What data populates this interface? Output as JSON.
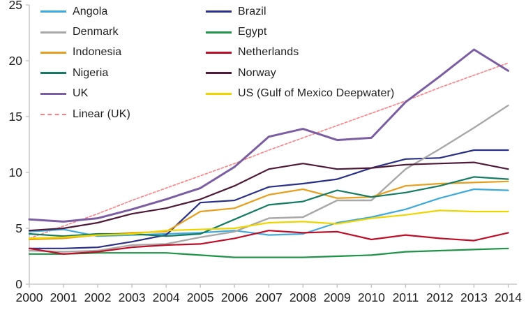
{
  "chart_data": {
    "type": "line",
    "title": "",
    "xlabel": "",
    "ylabel": "",
    "x": [
      2000,
      2001,
      2002,
      2003,
      2004,
      2005,
      2006,
      2007,
      2008,
      2009,
      2010,
      2011,
      2012,
      2013,
      2014
    ],
    "yticks": [
      0,
      5,
      10,
      15,
      20,
      25
    ],
    "ylim": [
      0,
      25
    ],
    "grid": false,
    "legend_position": "inside-top-left",
    "axis_color": "#bfbfbf",
    "text_color": "#1f1f1f",
    "series": [
      {
        "name": "Angola",
        "color": "#3fa9dc",
        "dashed": false,
        "width": 2.2,
        "values": [
          4.7,
          4.9,
          4.3,
          4.4,
          4.5,
          4.6,
          4.8,
          4.4,
          4.5,
          5.5,
          6.0,
          6.7,
          7.7,
          8.5,
          8.4
        ]
      },
      {
        "name": "Brazil",
        "color": "#2b3087",
        "dashed": false,
        "width": 2.2,
        "values": [
          3.2,
          3.2,
          3.3,
          3.8,
          4.4,
          7.3,
          7.5,
          8.7,
          9.0,
          9.4,
          10.4,
          11.2,
          11.3,
          12.0,
          12.0
        ]
      },
      {
        "name": "Denmark",
        "color": "#a8a8a8",
        "dashed": false,
        "width": 2.4,
        "values": [
          3.0,
          2.9,
          3.0,
          3.5,
          3.6,
          4.2,
          4.7,
          5.9,
          6.0,
          7.5,
          7.5,
          10.3,
          12.1,
          14.0,
          16.0
        ]
      },
      {
        "name": "Egypt",
        "color": "#1f9347",
        "dashed": false,
        "width": 2.2,
        "values": [
          2.7,
          2.7,
          2.8,
          2.8,
          2.8,
          2.6,
          2.4,
          2.4,
          2.4,
          2.5,
          2.6,
          2.9,
          3.0,
          3.1,
          3.2
        ]
      },
      {
        "name": "Indonesia",
        "color": "#e69f1e",
        "dashed": false,
        "width": 2.2,
        "values": [
          4.0,
          4.1,
          4.4,
          4.6,
          4.7,
          6.5,
          6.8,
          8.0,
          8.5,
          7.7,
          7.8,
          8.8,
          9.0,
          9.1,
          9.2
        ]
      },
      {
        "name": "Netherlands",
        "color": "#be0e27",
        "dashed": false,
        "width": 2.2,
        "values": [
          3.2,
          2.7,
          2.9,
          3.3,
          3.5,
          3.6,
          4.1,
          4.8,
          4.6,
          4.7,
          4.0,
          4.4,
          4.1,
          3.9,
          4.6
        ]
      },
      {
        "name": "Nigeria",
        "color": "#157b63",
        "dashed": false,
        "width": 2.2,
        "values": [
          4.5,
          4.3,
          4.5,
          4.5,
          4.3,
          4.5,
          5.8,
          7.1,
          7.4,
          8.4,
          7.8,
          8.2,
          8.8,
          9.6,
          9.4
        ]
      },
      {
        "name": "Norway",
        "color": "#4f1a38",
        "dashed": false,
        "width": 2.2,
        "values": [
          4.8,
          5.0,
          5.5,
          6.3,
          6.8,
          7.6,
          8.8,
          10.3,
          10.8,
          10.3,
          10.4,
          10.7,
          10.8,
          10.9,
          10.3
        ]
      },
      {
        "name": "UK",
        "color": "#7b5da2",
        "dashed": false,
        "width": 3.0,
        "values": [
          5.8,
          5.6,
          5.9,
          6.7,
          7.6,
          8.6,
          10.5,
          13.2,
          13.9,
          12.9,
          13.1,
          16.3,
          18.6,
          21.0,
          19.1
        ]
      },
      {
        "name": "US (Gulf of Mexico Deepwater)",
        "color": "#efd500",
        "dashed": false,
        "width": 2.2,
        "values": [
          4.1,
          4.2,
          4.4,
          4.5,
          4.8,
          4.9,
          5.0,
          5.5,
          5.6,
          5.4,
          5.9,
          6.2,
          6.6,
          6.5,
          6.5
        ]
      },
      {
        "name": "Linear (UK)",
        "color": "#ff7f84",
        "dashed": true,
        "width": 1.6,
        "values": [
          4.1,
          5.2,
          6.3,
          7.5,
          8.6,
          9.7,
          10.8,
          12.0,
          13.1,
          14.2,
          15.3,
          16.4,
          17.6,
          18.7,
          19.8
        ]
      }
    ],
    "legend_columns": [
      [
        "Angola",
        "Denmark",
        "Indonesia",
        "Nigeria",
        "UK",
        "Linear (UK)"
      ],
      [
        "Brazil",
        "Egypt",
        "Netherlands",
        "Norway",
        "US (Gulf of Mexico Deepwater)"
      ]
    ]
  }
}
